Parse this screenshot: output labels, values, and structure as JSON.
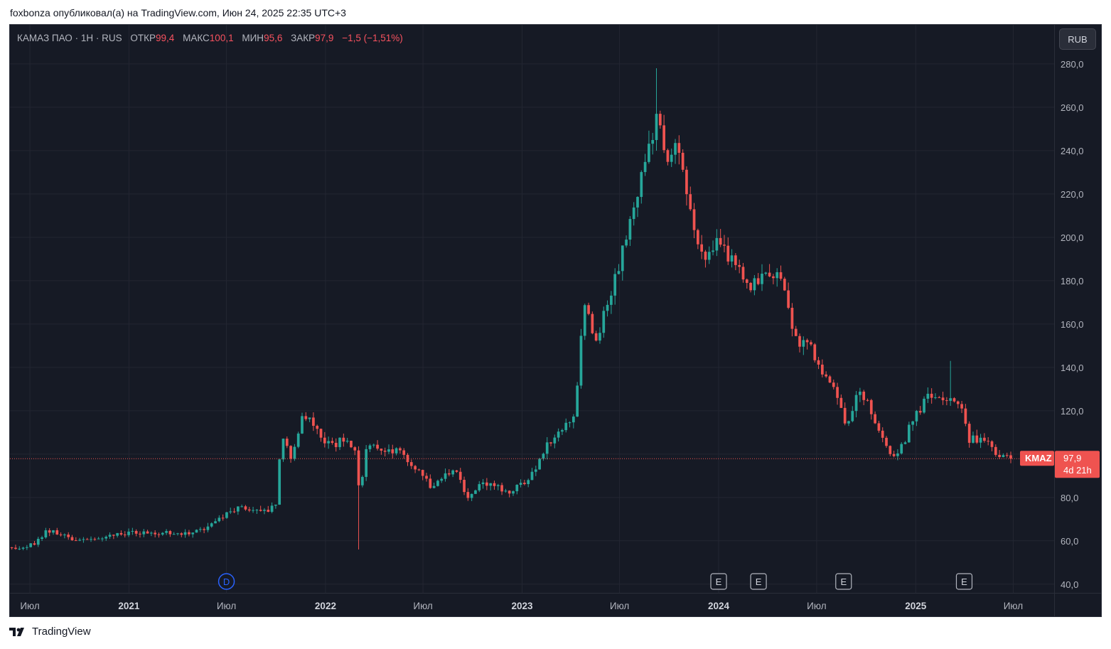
{
  "publisher_line": "foxbonza опубликовал(а) на TradingView.com, Июн 24, 2025 22:35 UTC+3",
  "legend": {
    "symbol": "КАМАЗ ПАО",
    "sep": "·",
    "interval": "1Н",
    "exchange": "RUS",
    "open_label": "ОТКР",
    "open_value": "99,4",
    "high_label": "МАКС",
    "high_value": "100,1",
    "low_label": "МИН",
    "low_value": "95,6",
    "close_label": "ЗАКР",
    "close_value": "97,9",
    "change": "−1,5 (−1,51%)"
  },
  "currency_button": "RUB",
  "price_badge": {
    "ticker": "KMAZ",
    "price": "97,9",
    "countdown": "4d 21h"
  },
  "event_markers": {
    "dividend": "D",
    "earnings": "E"
  },
  "footer_brand": "TradingView",
  "colors": {
    "background": "#161a25",
    "up": "#26a69a",
    "down": "#ef5350",
    "grid": "#232632",
    "axis_text": "#b2b5be"
  },
  "icons": [
    "tradingview-logo-icon",
    "dividend-marker-icon",
    "earnings-marker-icon"
  ],
  "chart_data": {
    "type": "candlestick",
    "symbol": "KMAZ",
    "currency": "RUB",
    "y_axis": {
      "ticks": [
        "40,0",
        "60,0",
        "80,0",
        "100,0",
        "120,0",
        "140,0",
        "160,0",
        "180,0",
        "200,0",
        "220,0",
        "240,0",
        "260,0",
        "280,0"
      ],
      "range": [
        36,
        298
      ]
    },
    "x_axis": {
      "ticks": [
        {
          "t": "2020-07-01",
          "label": "Июл"
        },
        {
          "t": "2021-01-01",
          "label": "2021"
        },
        {
          "t": "2021-07-01",
          "label": "Июл"
        },
        {
          "t": "2022-01-01",
          "label": "2022"
        },
        {
          "t": "2022-07-01",
          "label": "Июл"
        },
        {
          "t": "2023-01-01",
          "label": "2023"
        },
        {
          "t": "2023-07-01",
          "label": "Июл"
        },
        {
          "t": "2024-01-01",
          "label": "2024"
        },
        {
          "t": "2024-07-01",
          "label": "Июл"
        },
        {
          "t": "2025-01-01",
          "label": "2025"
        },
        {
          "t": "2025-07-01",
          "label": "Июл"
        }
      ],
      "range": [
        "2020-05-25",
        "2025-09-15"
      ]
    },
    "last_price": 97.9,
    "gridlines": true,
    "price_path": [
      {
        "t": "2020-05-25",
        "v": 57
      },
      {
        "t": "2020-06-20",
        "v": 57
      },
      {
        "t": "2020-07-15",
        "v": 60
      },
      {
        "t": "2020-08-01",
        "v": 65
      },
      {
        "t": "2020-09-01",
        "v": 62
      },
      {
        "t": "2020-10-01",
        "v": 60
      },
      {
        "t": "2020-11-01",
        "v": 60
      },
      {
        "t": "2020-12-01",
        "v": 63
      },
      {
        "t": "2021-01-15",
        "v": 64
      },
      {
        "t": "2021-03-01",
        "v": 64
      },
      {
        "t": "2021-04-15",
        "v": 63
      },
      {
        "t": "2021-05-15",
        "v": 65
      },
      {
        "t": "2021-06-15",
        "v": 70
      },
      {
        "t": "2021-07-15",
        "v": 75
      },
      {
        "t": "2021-08-15",
        "v": 74
      },
      {
        "t": "2021-09-20",
        "v": 74
      },
      {
        "t": "2021-10-01",
        "v": 78
      },
      {
        "t": "2021-10-10",
        "v": 107
      },
      {
        "t": "2021-11-01",
        "v": 98
      },
      {
        "t": "2021-11-20",
        "v": 120
      },
      {
        "t": "2021-12-10",
        "v": 112
      },
      {
        "t": "2022-01-01",
        "v": 104
      },
      {
        "t": "2022-02-01",
        "v": 106
      },
      {
        "t": "2022-02-25",
        "v": 103
      },
      {
        "t": "2022-03-05",
        "v": 80
      },
      {
        "t": "2022-03-20",
        "v": 105
      },
      {
        "t": "2022-04-15",
        "v": 101
      },
      {
        "t": "2022-05-15",
        "v": 101
      },
      {
        "t": "2022-06-15",
        "v": 94
      },
      {
        "t": "2022-07-15",
        "v": 85
      },
      {
        "t": "2022-08-15",
        "v": 90
      },
      {
        "t": "2022-09-05",
        "v": 92
      },
      {
        "t": "2022-09-20",
        "v": 78
      },
      {
        "t": "2022-10-15",
        "v": 88
      },
      {
        "t": "2022-11-15",
        "v": 85
      },
      {
        "t": "2022-12-15",
        "v": 83
      },
      {
        "t": "2023-01-15",
        "v": 88
      },
      {
        "t": "2023-02-15",
        "v": 105
      },
      {
        "t": "2023-03-15",
        "v": 110
      },
      {
        "t": "2023-04-10",
        "v": 120
      },
      {
        "t": "2023-04-25",
        "v": 168
      },
      {
        "t": "2023-05-20",
        "v": 152
      },
      {
        "t": "2023-06-20",
        "v": 180
      },
      {
        "t": "2023-07-20",
        "v": 205
      },
      {
        "t": "2023-08-20",
        "v": 235
      },
      {
        "t": "2023-09-10",
        "v": 258
      },
      {
        "t": "2023-09-25",
        "v": 232
      },
      {
        "t": "2023-10-10",
        "v": 245
      },
      {
        "t": "2023-11-01",
        "v": 225
      },
      {
        "t": "2023-11-20",
        "v": 200
      },
      {
        "t": "2023-12-10",
        "v": 190
      },
      {
        "t": "2024-01-01",
        "v": 198
      },
      {
        "t": "2024-02-01",
        "v": 188
      },
      {
        "t": "2024-03-01",
        "v": 178
      },
      {
        "t": "2024-04-01",
        "v": 186
      },
      {
        "t": "2024-04-25",
        "v": 182
      },
      {
        "t": "2024-05-10",
        "v": 168
      },
      {
        "t": "2024-05-25",
        "v": 150
      },
      {
        "t": "2024-06-15",
        "v": 155
      },
      {
        "t": "2024-07-01",
        "v": 142
      },
      {
        "t": "2024-08-01",
        "v": 132
      },
      {
        "t": "2024-08-25",
        "v": 112
      },
      {
        "t": "2024-09-20",
        "v": 131
      },
      {
        "t": "2024-10-20",
        "v": 114
      },
      {
        "t": "2024-11-25",
        "v": 97
      },
      {
        "t": "2024-12-20",
        "v": 112
      },
      {
        "t": "2025-01-20",
        "v": 126
      },
      {
        "t": "2025-02-10",
        "v": 124
      },
      {
        "t": "2025-03-01",
        "v": 126
      },
      {
        "t": "2025-03-25",
        "v": 122
      },
      {
        "t": "2025-04-10",
        "v": 106
      },
      {
        "t": "2025-05-05",
        "v": 108
      },
      {
        "t": "2025-05-25",
        "v": 102
      },
      {
        "t": "2025-06-23",
        "v": 97.9
      }
    ],
    "notable_extremes": [
      {
        "t": "2022-03-05",
        "low": 56
      },
      {
        "t": "2023-09-05",
        "high": 278
      },
      {
        "t": "2025-03-05",
        "high": 143
      }
    ],
    "events": [
      {
        "t": "2021-07-01",
        "type": "dividend",
        "label": "D"
      },
      {
        "t": "2024-01-01",
        "type": "earnings",
        "label": "E"
      },
      {
        "t": "2024-03-15",
        "type": "earnings",
        "label": "E"
      },
      {
        "t": "2024-08-20",
        "type": "earnings",
        "label": "E"
      },
      {
        "t": "2025-04-01",
        "type": "earnings",
        "label": "E"
      }
    ]
  }
}
